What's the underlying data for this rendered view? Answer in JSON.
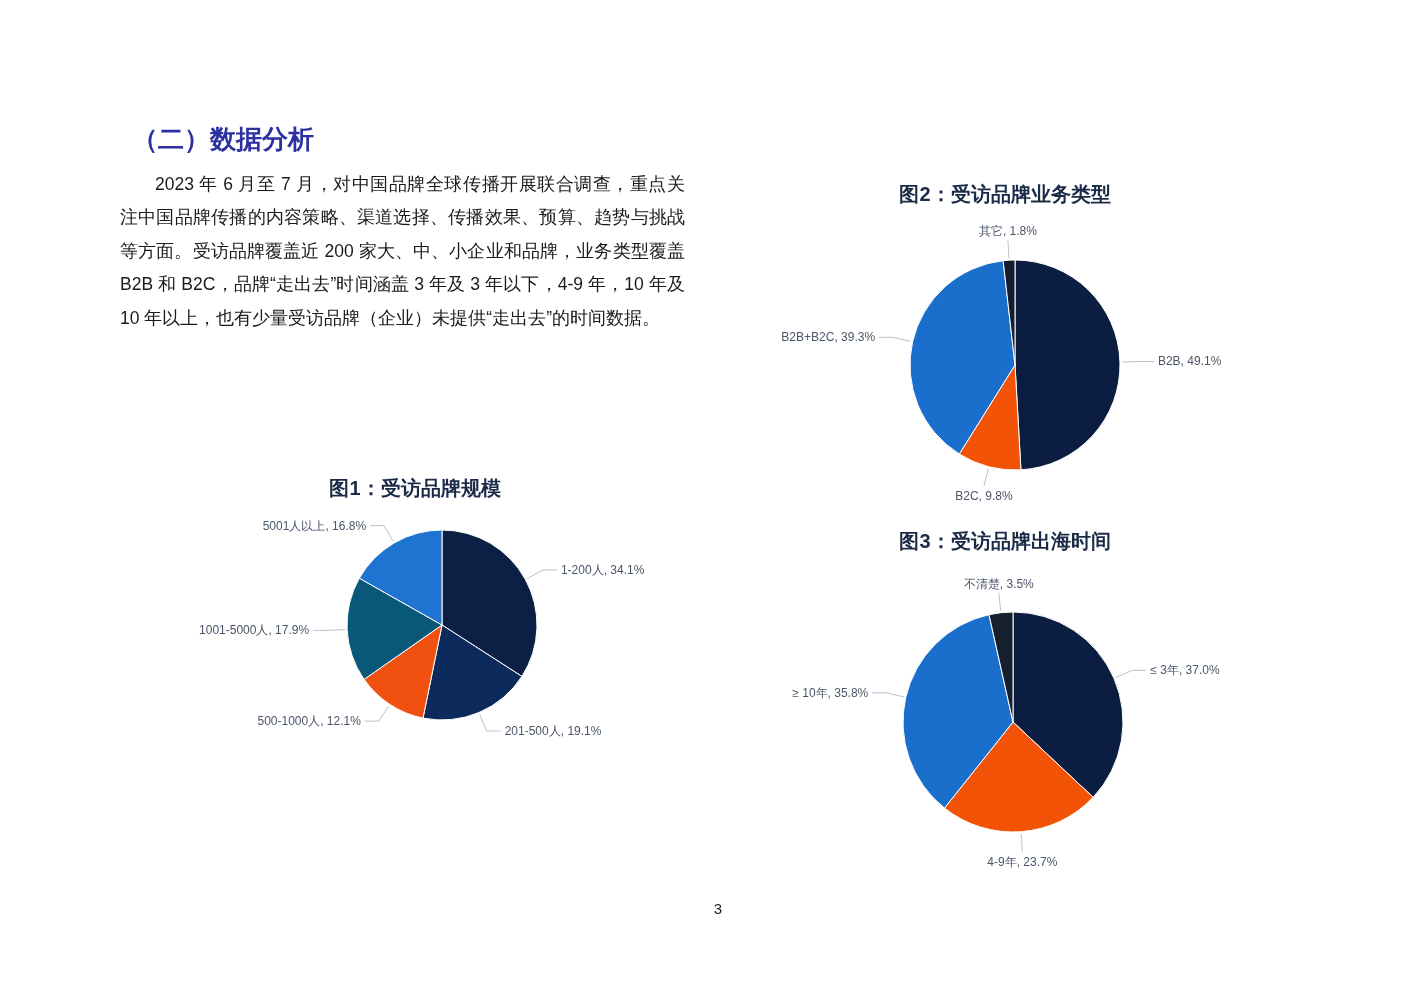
{
  "chart_data": [
    {
      "type": "other",
      "title": "（二）数据分析",
      "annotations": [
        "2023 年 6 月至 7 月，对中国品牌全球传播开展联合调查，重点关注中国品牌传播的内容策略、渠道选择、传播效果、预算、趋势与挑战等方面。受访品牌覆盖近 200 家大、中、小企业和品牌，业务类型覆盖 B2B 和 B2C，品牌“走出去”时间涵盖 3 年及 3 年以下，4-9 年，10 年及 10 年以上，也有少量受访品牌（企业）未提供“走出去”的时间数据。",
        "3"
      ]
    },
    {
      "type": "pie",
      "title": "图1：受访品牌规模",
      "categories": [
        "1-200人",
        "201-500人",
        "500-1000人",
        "1001-5000人",
        "5001人以上"
      ],
      "values": [
        34.1,
        19.1,
        12.1,
        17.9,
        16.8
      ],
      "value_labels": [
        "34.1%",
        "19.1%",
        "12.1%",
        "17.9%",
        "16.8%"
      ],
      "colors": [
        "#0c1f44",
        "#0d2a5c",
        "#f05010",
        "#0a5878",
        "#1e74d0"
      ]
    },
    {
      "type": "pie",
      "title": "图2：受访品牌业务类型",
      "categories": [
        "B2B",
        "B2C",
        "B2B+B2C",
        "其它"
      ],
      "values": [
        49.1,
        9.8,
        39.3,
        1.8
      ],
      "value_labels": [
        "49.1%",
        "9.8%",
        "39.3%",
        "1.8%"
      ],
      "colors": [
        "#0b1e42",
        "#f25306",
        "#1a6fcc",
        "#121d30"
      ]
    },
    {
      "type": "pie",
      "title": "图3：受访品牌出海时间",
      "categories": [
        "≤ 3年",
        "4-9年",
        "≥ 10年",
        "不清楚"
      ],
      "values": [
        37.0,
        23.7,
        35.8,
        3.5
      ],
      "value_labels": [
        "37.0%",
        "23.7%",
        "35.8%",
        "3.5%"
      ],
      "colors": [
        "#0b1e42",
        "#f25306",
        "#1a6fcc",
        "#161f2e"
      ]
    }
  ]
}
